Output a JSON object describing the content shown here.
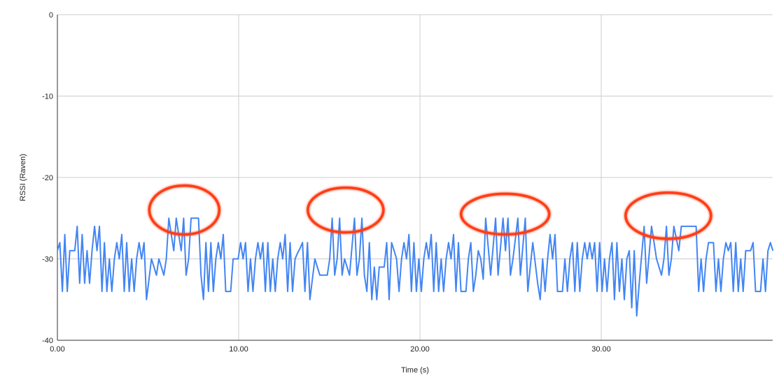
{
  "chart_data": {
    "type": "line",
    "title": "",
    "xlabel": "Time (s)",
    "ylabel": "RSSI (Raven)",
    "xlim": [
      0,
      39.5
    ],
    "ylim": [
      -40,
      0
    ],
    "x_ticks": [
      "0.00",
      "10.00",
      "20.00",
      "30.00"
    ],
    "x_tick_values": [
      0,
      10,
      20,
      30
    ],
    "y_ticks": [
      "0",
      "-10",
      "-20",
      "-30",
      "-40"
    ],
    "y_tick_values": [
      0,
      -10,
      -20,
      -30,
      -40
    ],
    "grid": true,
    "series_x_range": [
      0,
      39.47
    ],
    "series": [
      {
        "color": "#4285f4",
        "values": [
          -29,
          -28,
          -34,
          -27,
          -34,
          -29,
          -29,
          -29,
          -26,
          -33,
          -27,
          -33,
          -29,
          -33,
          -29,
          -26,
          -29,
          -26,
          -34,
          -28,
          -34,
          -30,
          -34,
          -30,
          -28,
          -30,
          -27,
          -34,
          -28,
          -34,
          -30,
          -34,
          -30,
          -28,
          -30,
          -28,
          -35,
          -32.5,
          -30,
          -31,
          -32,
          -30,
          -31,
          -32,
          -30,
          -25,
          -27,
          -29,
          -25,
          -27,
          -29,
          -25,
          -32,
          -30,
          -25,
          -25,
          -25,
          -25,
          -32,
          -35,
          -28,
          -34,
          -28,
          -34,
          -30,
          -28,
          -30,
          -27,
          -34,
          -34,
          -34,
          -30,
          -30,
          -30,
          -28,
          -30,
          -28,
          -34,
          -30,
          -34,
          -30,
          -28,
          -30,
          -28,
          -34,
          -28,
          -34,
          -30,
          -34,
          -30,
          -28,
          -30,
          -27,
          -34,
          -28,
          -34,
          -30,
          -29.3,
          -28.7,
          -28,
          -34,
          -28,
          -35,
          -32.5,
          -30,
          -31,
          -32,
          -32,
          -32,
          -32,
          -30,
          -25,
          -32,
          -30,
          -25,
          -32,
          -30,
          -31,
          -32,
          -28.5,
          -25,
          -32,
          -30,
          -25,
          -32,
          -34,
          -28,
          -35,
          -31,
          -35,
          -31,
          -31,
          -31,
          -28,
          -35,
          -28,
          -29,
          -30,
          -34,
          -30,
          -28,
          -30,
          -27,
          -34,
          -28,
          -34,
          -30,
          -34,
          -30,
          -28,
          -30,
          -27,
          -34,
          -28,
          -34,
          -30,
          -34,
          -30,
          -28,
          -30,
          -27,
          -34,
          -28,
          -34,
          -34,
          -34,
          -30,
          -28,
          -34,
          -32,
          -29,
          -30,
          -32.5,
          -25,
          -28.5,
          -32,
          -28.5,
          -25,
          -32,
          -28.5,
          -25,
          -29,
          -25,
          -32,
          -30,
          -27.5,
          -25,
          -32,
          -28.5,
          -25,
          -34,
          -31,
          -28,
          -30.5,
          -33,
          -35,
          -30,
          -34,
          -30,
          -27,
          -30,
          -27,
          -34,
          -34,
          -34,
          -30,
          -34,
          -30,
          -28,
          -34,
          -28,
          -34,
          -30,
          -28,
          -30,
          -28,
          -30,
          -28,
          -34,
          -28,
          -34,
          -30,
          -34,
          -30,
          -28,
          -35,
          -28,
          -34,
          -30,
          -35,
          -30,
          -29,
          -36,
          -29,
          -37,
          -33,
          -29.5,
          -26,
          -33,
          -29.5,
          -26,
          -28,
          -30,
          -31,
          -32,
          -30,
          -26,
          -32,
          -30,
          -26,
          -27.5,
          -29,
          -26,
          -26,
          -26,
          -26,
          -26,
          -26,
          -26,
          -34,
          -30,
          -34,
          -30,
          -28,
          -28,
          -28,
          -34,
          -30,
          -34,
          -30,
          -28,
          -29,
          -28,
          -34,
          -28,
          -34,
          -30,
          -34,
          -29,
          -29,
          -29,
          -28,
          -34,
          -34,
          -34,
          -30,
          -34,
          -29,
          -28,
          -29
        ]
      }
    ],
    "annotations": [
      {
        "shape": "ellipse",
        "color": "#ff3d14",
        "center": [
          7.0,
          -24
        ]
      },
      {
        "shape": "ellipse",
        "color": "#ff3d14",
        "center": [
          15.9,
          -24
        ]
      },
      {
        "shape": "ellipse",
        "color": "#ff3d14",
        "center": [
          24.7,
          -24.5
        ]
      },
      {
        "shape": "ellipse",
        "color": "#ff3d14",
        "center": [
          33.7,
          -24.7
        ]
      }
    ]
  }
}
